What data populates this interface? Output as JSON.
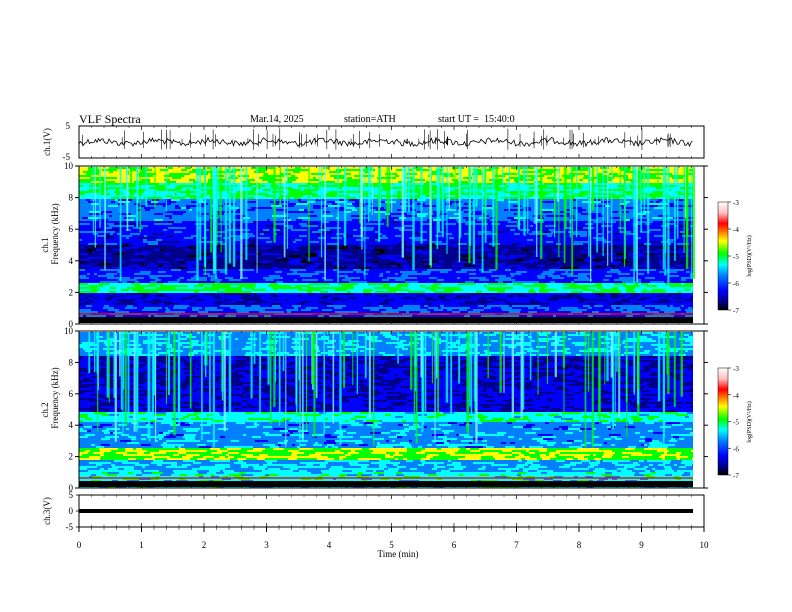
{
  "header": {
    "title": "VLF Spectra",
    "date": "Mar.14, 2025",
    "station": "station=ATH",
    "start_ut": "start UT =  15:40:0"
  },
  "colors": {
    "spectrum_scale": [
      "#000000",
      "#00008b",
      "#0000ff",
      "#0080ff",
      "#00ffff",
      "#00ff00",
      "#ffff00",
      "#ff8000",
      "#ff0000",
      "#ffc0c0",
      "#ffffff"
    ]
  },
  "chart_data": [
    {
      "type": "line",
      "name": "ch1-waveform",
      "ylabel": "ch.1(V)",
      "ylim": [
        -5,
        5
      ],
      "yticks": [
        "5",
        "-5"
      ],
      "xlim": [
        0,
        10
      ]
    },
    {
      "type": "heatmap",
      "name": "ch1-spectrogram",
      "ylabel_1": "ch.1",
      "ylabel_2": "Frequency (kHz)",
      "ylim": [
        0,
        10
      ],
      "yticks": [
        "0",
        "2",
        "4",
        "6",
        "8",
        "10"
      ],
      "xlim": [
        0,
        10
      ],
      "colorbar": {
        "label": "log(PSD)(V²/Hz)",
        "range": [
          -7,
          -3
        ],
        "ticks": [
          "-3",
          "-4",
          "-5",
          "-6",
          "-7"
        ]
      }
    },
    {
      "type": "heatmap",
      "name": "ch2-spectrogram",
      "ylabel_1": "ch.2",
      "ylabel_2": "Frequency (kHz)",
      "ylim": [
        0,
        10
      ],
      "yticks": [
        "0",
        "2",
        "4",
        "6",
        "8",
        "10"
      ],
      "xlim": [
        0,
        10
      ],
      "colorbar": {
        "label": "log(PSD)(V²/Hz)",
        "range": [
          -7,
          -3
        ],
        "ticks": [
          "-3",
          "-4",
          "-5",
          "-6",
          "-7"
        ]
      }
    },
    {
      "type": "line",
      "name": "ch3-waveform",
      "ylabel": "ch.3(V)",
      "ylim": [
        -5,
        5
      ],
      "yticks": [
        "5",
        "0",
        "-5"
      ],
      "xlim": [
        0,
        10
      ],
      "xlabel": "Time (min)",
      "xticks": [
        "0",
        "1",
        "2",
        "3",
        "4",
        "5",
        "6",
        "7",
        "8",
        "9",
        "10"
      ]
    }
  ]
}
